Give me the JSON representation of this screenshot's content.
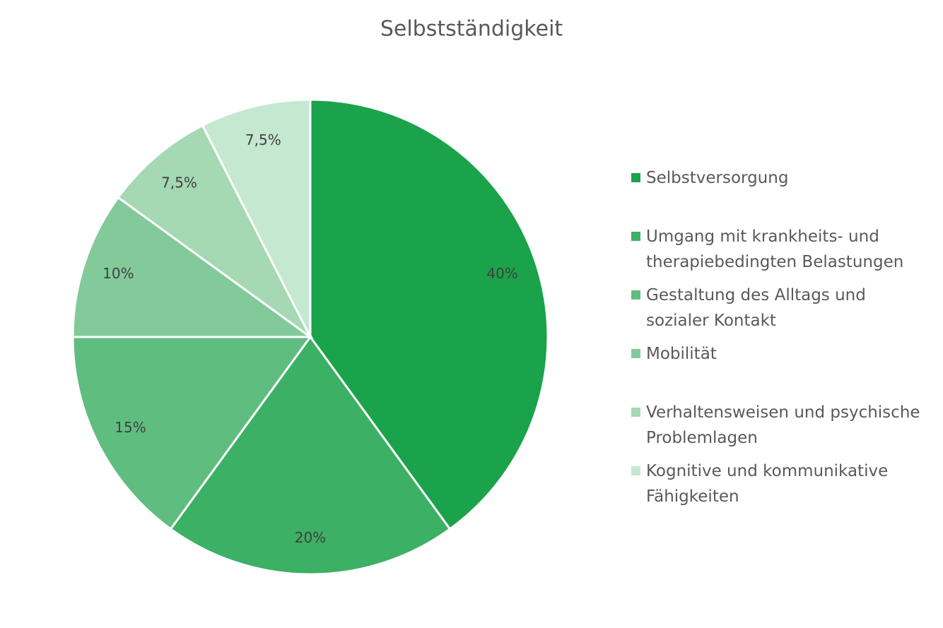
{
  "chart_data": {
    "type": "pie",
    "title": "Selbstständigkeit",
    "categories": [
      "Selbstversorgung",
      "Umgang mit krankheits- und therapiebedingten Belastungen",
      "Gestaltung des Alltags und sozialer Kontakt",
      "Mobilität",
      "Verhaltensweisen und psychische Problemlagen",
      "Kognitive und kommunikative Fähigkeiten"
    ],
    "values": [
      40,
      20,
      15,
      10,
      7.5,
      7.5
    ],
    "value_labels": [
      "40%",
      "20%",
      "15%",
      "10%",
      "7,5%",
      "7,5%"
    ],
    "colors": [
      "#1aa34a",
      "#3cb064",
      "#5fbd80",
      "#82ca9a",
      "#a4d9b3",
      "#c5e8d0"
    ],
    "legend": "right"
  }
}
